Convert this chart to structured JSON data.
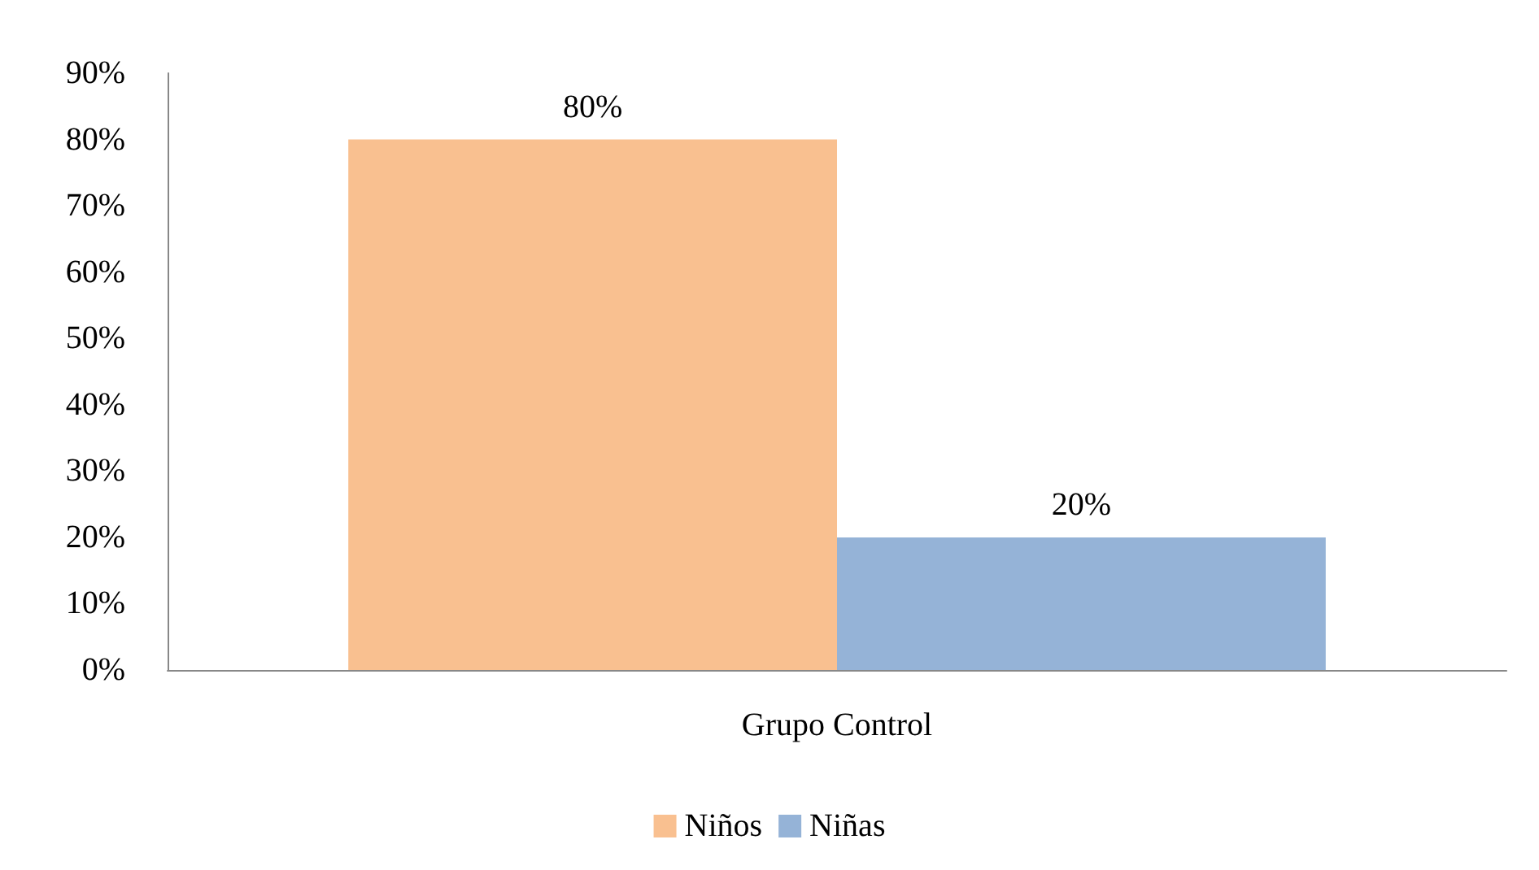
{
  "chart_data": {
    "type": "bar",
    "categories": [
      "Grupo Control"
    ],
    "series": [
      {
        "name": "Niños",
        "color": "#f9c090",
        "values": [
          80
        ],
        "value_labels": [
          "80%"
        ]
      },
      {
        "name": "Niñas",
        "color": "#95b3d7",
        "values": [
          20
        ],
        "value_labels": [
          "20%"
        ]
      }
    ],
    "ylim": [
      0,
      90
    ],
    "yticks": [
      {
        "value": 0,
        "label": "0%"
      },
      {
        "value": 10,
        "label": "10%"
      },
      {
        "value": 20,
        "label": "20%"
      },
      {
        "value": 30,
        "label": "30%"
      },
      {
        "value": 40,
        "label": "40%"
      },
      {
        "value": 50,
        "label": "50%"
      },
      {
        "value": 60,
        "label": "60%"
      },
      {
        "value": 70,
        "label": "70%"
      },
      {
        "value": 80,
        "label": "80%"
      },
      {
        "value": 90,
        "label": "90%"
      }
    ],
    "grid": false,
    "legend": "bottom"
  }
}
